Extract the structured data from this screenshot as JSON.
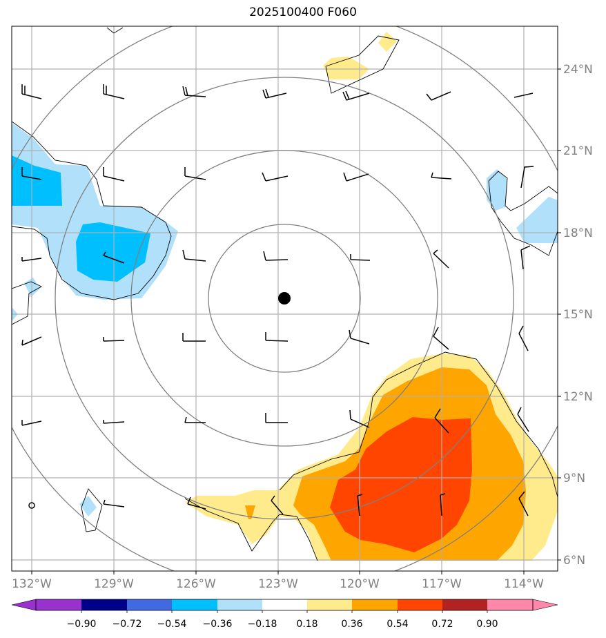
{
  "title": "2025100400 F060",
  "map": {
    "lon_ticks": [
      "132°W",
      "129°W",
      "126°W",
      "123°W",
      "120°W",
      "117°W",
      "114°W"
    ],
    "lat_ticks": [
      "24°N",
      "21°N",
      "18°N",
      "15°N",
      "12°N",
      "9°N",
      "6°N"
    ],
    "center_marker": "storm-center-dot"
  },
  "colorbar": {
    "labels": [
      "−0.90",
      "−0.72",
      "−0.54",
      "−0.36",
      "−0.18",
      "0.18",
      "0.36",
      "0.54",
      "0.72",
      "0.90"
    ],
    "colors": [
      "#9932cc",
      "#00008b",
      "#4169e1",
      "#00bfff",
      "#b0e0fa",
      "#ffffff",
      "#ffeb8c",
      "#ffa500",
      "#ff4500",
      "#b22222",
      "#ff88aa"
    ]
  },
  "colors": {
    "grid": "#b0b0b0",
    "rings": "#808080",
    "coast": "#000000"
  }
}
